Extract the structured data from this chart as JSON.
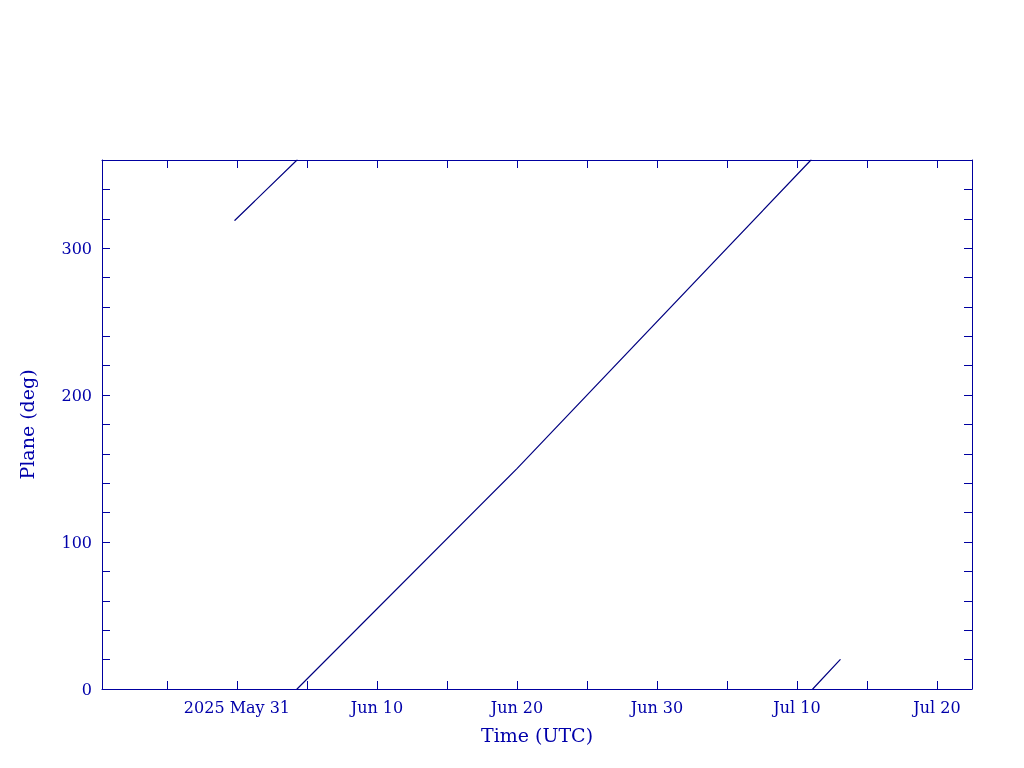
{
  "chart_data": {
    "type": "line",
    "xlabel": "Time (UTC)",
    "ylabel": "Plane (deg)",
    "series": [
      {
        "color": "#000080",
        "x": [
          "2025-05-30T20:30",
          "2025-06-04T07:00"
        ],
        "values": [
          319,
          360
        ]
      },
      {
        "color": "#000080",
        "x": [
          "2025-06-04T07:00",
          "2025-06-20T00:00",
          "2025-07-11T00:00"
        ],
        "values": [
          0,
          150,
          360
        ]
      },
      {
        "color": "#000080",
        "x": [
          "2025-07-11T03:00",
          "2025-07-13T02:00"
        ],
        "values": [
          0,
          20
        ]
      }
    ],
    "xlim": [
      "2025-05-21T08:40",
      "2025-07-22T12:00"
    ],
    "xticks": [
      {
        "value": "2025-05-26",
        "label": null
      },
      {
        "value": "2025-05-31",
        "label": "2025 May 31"
      },
      {
        "value": "2025-06-05",
        "label": null
      },
      {
        "value": "2025-06-10",
        "label": "Jun 10"
      },
      {
        "value": "2025-06-15",
        "label": null
      },
      {
        "value": "2025-06-20",
        "label": "Jun 20"
      },
      {
        "value": "2025-06-25",
        "label": null
      },
      {
        "value": "2025-06-30",
        "label": "Jun 30"
      },
      {
        "value": "2025-07-05",
        "label": null
      },
      {
        "value": "2025-07-10",
        "label": "Jul 10"
      },
      {
        "value": "2025-07-15",
        "label": null
      },
      {
        "value": "2025-07-20",
        "label": "Jul 20"
      }
    ],
    "ylim": [
      0,
      360
    ],
    "yticks": [
      0,
      {
        "value": 20,
        "label": null
      },
      {
        "value": 40,
        "label": null
      },
      {
        "value": 60,
        "label": null
      },
      {
        "value": 80,
        "label": null
      },
      100,
      {
        "value": 120,
        "label": null
      },
      {
        "value": 140,
        "label": null
      },
      {
        "value": 160,
        "label": null
      },
      {
        "value": 180,
        "label": null
      },
      200,
      {
        "value": 220,
        "label": null
      },
      {
        "value": 240,
        "label": null
      },
      {
        "value": 260,
        "label": null
      },
      {
        "value": 280,
        "label": null
      },
      300,
      {
        "value": 320,
        "label": null
      },
      {
        "value": 340,
        "label": null
      }
    ],
    "grid": false,
    "marker": "none",
    "line_style": "solid"
  }
}
